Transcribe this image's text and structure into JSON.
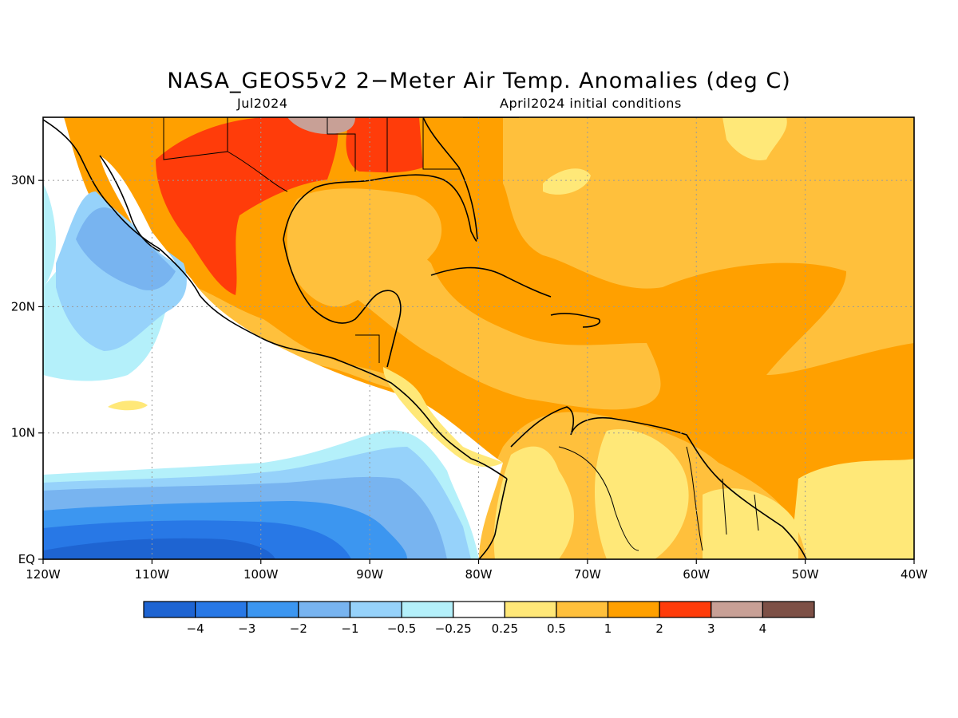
{
  "title": "NASA_GEOS5v2 2−Meter Air Temp. Anomalies (deg C)",
  "subtitle_left": "Jul2024",
  "subtitle_right": "April2024 initial conditions",
  "map": {
    "lon_range": [
      -120,
      -40
    ],
    "lat_range": [
      0,
      35
    ],
    "lon_ticks": [
      {
        "value": -120,
        "label": "120W"
      },
      {
        "value": -110,
        "label": "110W"
      },
      {
        "value": -100,
        "label": "100W"
      },
      {
        "value": -90,
        "label": "90W"
      },
      {
        "value": -80,
        "label": "80W"
      },
      {
        "value": -70,
        "label": "70W"
      },
      {
        "value": -60,
        "label": "60W"
      },
      {
        "value": -50,
        "label": "50W"
      },
      {
        "value": -40,
        "label": "40W"
      }
    ],
    "lat_ticks": [
      {
        "value": 0,
        "label": "EQ"
      },
      {
        "value": 10,
        "label": "10N"
      },
      {
        "value": 20,
        "label": "20N"
      },
      {
        "value": 30,
        "label": "30N"
      }
    ],
    "gridlines": "dotted"
  },
  "colorbar": {
    "colors": [
      "#1e64d2",
      "#2878e6",
      "#3c96f0",
      "#78b4f0",
      "#96d2fa",
      "#b4f0fa",
      "#ffffff",
      "#ffe878",
      "#ffc03c",
      "#ffa000",
      "#ff3c0a",
      "#c8a096",
      "#7d5046"
    ],
    "labels": [
      "−4",
      "−3",
      "−2",
      "−1",
      "−0.5",
      "−0.25",
      "0.25",
      "0.5",
      "1",
      "2",
      "3",
      "4"
    ]
  }
}
